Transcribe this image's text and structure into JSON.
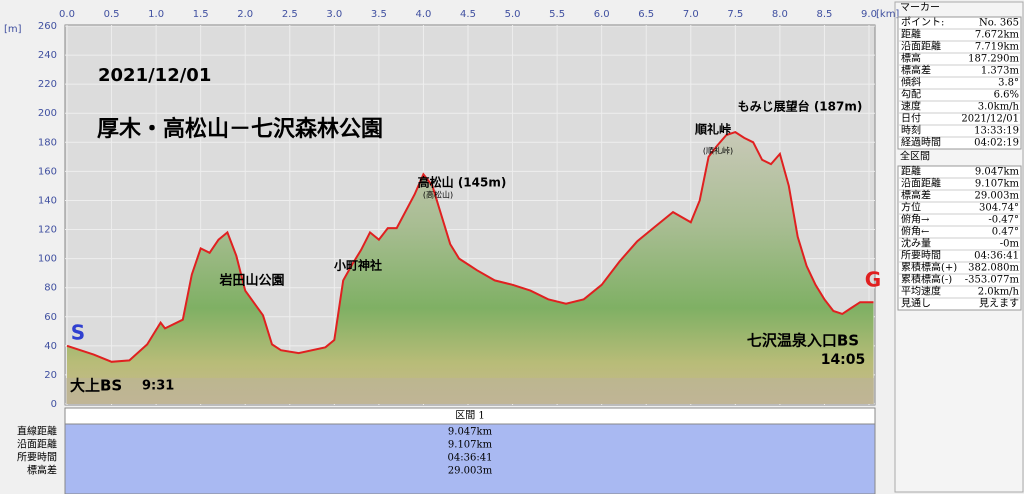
{
  "chart_data": {
    "type": "area",
    "y_unit": "[m]",
    "x_unit": "[km]",
    "xlim": [
      0,
      9.05
    ],
    "ylim": [
      0,
      260
    ],
    "xticks": [
      {
        "value": 0,
        "label": "0.0"
      },
      {
        "value": 0.5,
        "label": "0.5"
      },
      {
        "value": 1,
        "label": "1.0"
      },
      {
        "value": 1.5,
        "label": "1.5"
      },
      {
        "value": 2,
        "label": "2.0"
      },
      {
        "value": 2.5,
        "label": "2.5"
      },
      {
        "value": 3,
        "label": "3.0"
      },
      {
        "value": 3.5,
        "label": "3.5"
      },
      {
        "value": 4,
        "label": "4.0"
      },
      {
        "value": 4.5,
        "label": "4.5"
      },
      {
        "value": 5,
        "label": "5.0"
      },
      {
        "value": 5.5,
        "label": "5.5"
      },
      {
        "value": 6,
        "label": "6.0"
      },
      {
        "value": 6.5,
        "label": "6.5"
      },
      {
        "value": 7,
        "label": "7.0"
      },
      {
        "value": 7.5,
        "label": "7.5"
      },
      {
        "value": 8,
        "label": "8.0"
      },
      {
        "value": 8.5,
        "label": "8.5"
      },
      {
        "value": 9,
        "label": "9.0"
      }
    ],
    "yticks": [
      0,
      20,
      40,
      60,
      80,
      100,
      120,
      140,
      160,
      180,
      200,
      220,
      240,
      260
    ],
    "color": "#e02020",
    "x": [
      0,
      0.3,
      0.5,
      0.7,
      0.9,
      1.0,
      1.05,
      1.1,
      1.3,
      1.4,
      1.5,
      1.6,
      1.7,
      1.8,
      1.9,
      2.0,
      2.2,
      2.3,
      2.4,
      2.6,
      2.9,
      3.0,
      3.1,
      3.2,
      3.3,
      3.4,
      3.5,
      3.6,
      3.7,
      3.9,
      4.0,
      4.1,
      4.2,
      4.3,
      4.4,
      4.5,
      4.6,
      4.8,
      5.0,
      5.2,
      5.4,
      5.6,
      5.8,
      6.0,
      6.2,
      6.4,
      6.6,
      6.8,
      7.0,
      7.1,
      7.2,
      7.3,
      7.4,
      7.5,
      7.6,
      7.7,
      7.8,
      7.9,
      8.0,
      8.1,
      8.2,
      8.3,
      8.4,
      8.5,
      8.6,
      8.7,
      8.8,
      8.9,
      9.05
    ],
    "values": [
      40,
      34,
      29,
      30,
      41,
      51,
      56,
      52,
      58,
      89,
      107,
      104,
      113,
      118,
      102,
      78,
      61,
      41,
      37,
      35,
      39,
      44,
      85,
      96,
      106,
      118,
      113,
      121,
      121,
      144,
      158,
      150,
      130,
      110,
      100,
      96,
      92,
      85,
      82,
      78,
      72,
      69,
      72,
      82,
      98,
      112,
      122,
      132,
      125,
      140,
      170,
      178,
      185,
      187,
      183,
      180,
      168,
      165,
      172,
      150,
      115,
      95,
      82,
      72,
      64,
      62,
      66,
      70,
      70
    ],
    "start_label": "S",
    "goal_label": "G",
    "annotations": [
      "2021/12/01",
      "厚木・高松山－七沢森林公園",
      "岩田山公園",
      "小町神社",
      "高松山 (145m)",
      "(高松山)",
      "順礼峠",
      "(順礼峠)",
      "もみじ展望台 (187m)",
      "七沢温泉入口BS",
      "14:05",
      "大上BS",
      "9:31"
    ]
  },
  "section_panel": {
    "title": "区間 1",
    "labels": [
      "直線距離",
      "沿面距離",
      "所要時間",
      "標高差"
    ],
    "values": [
      "9.047km",
      "9.107km",
      "04:36:41",
      "29.003m"
    ]
  },
  "marker_panel": {
    "title": "マーカー",
    "rows": [
      [
        "ポイント:",
        "No. 365"
      ],
      [
        "距離",
        "7.672km"
      ],
      [
        "沿面距離",
        "7.719km"
      ],
      [
        "標高",
        "187.290m"
      ],
      [
        "標高差",
        "1.373m"
      ],
      [
        "傾斜",
        "3.8°"
      ],
      [
        "勾配",
        "6.6%"
      ],
      [
        "速度",
        "3.0km/h"
      ],
      [
        "日付",
        "2021/12/01"
      ],
      [
        "時刻",
        "13:33:19"
      ],
      [
        "経過時間",
        "04:02:19"
      ]
    ]
  },
  "all_panel": {
    "title": "全区間",
    "rows": [
      [
        "距離",
        "9.047km"
      ],
      [
        "沿面距離",
        "9.107km"
      ],
      [
        "標高差",
        "29.003m"
      ],
      [
        "方位",
        "304.74°"
      ],
      [
        "俯角→",
        "-0.47°"
      ],
      [
        "俯角←",
        "0.47°"
      ],
      [
        "沈み量",
        "-0m"
      ],
      [
        "所要時間",
        "04:36:41"
      ],
      [
        "累積標高(+)",
        "382.080m"
      ],
      [
        "累積標高(-)",
        "-353.077m"
      ],
      [
        "平均速度",
        "2.0km/h"
      ],
      [
        "見通し",
        "見えます"
      ]
    ]
  }
}
